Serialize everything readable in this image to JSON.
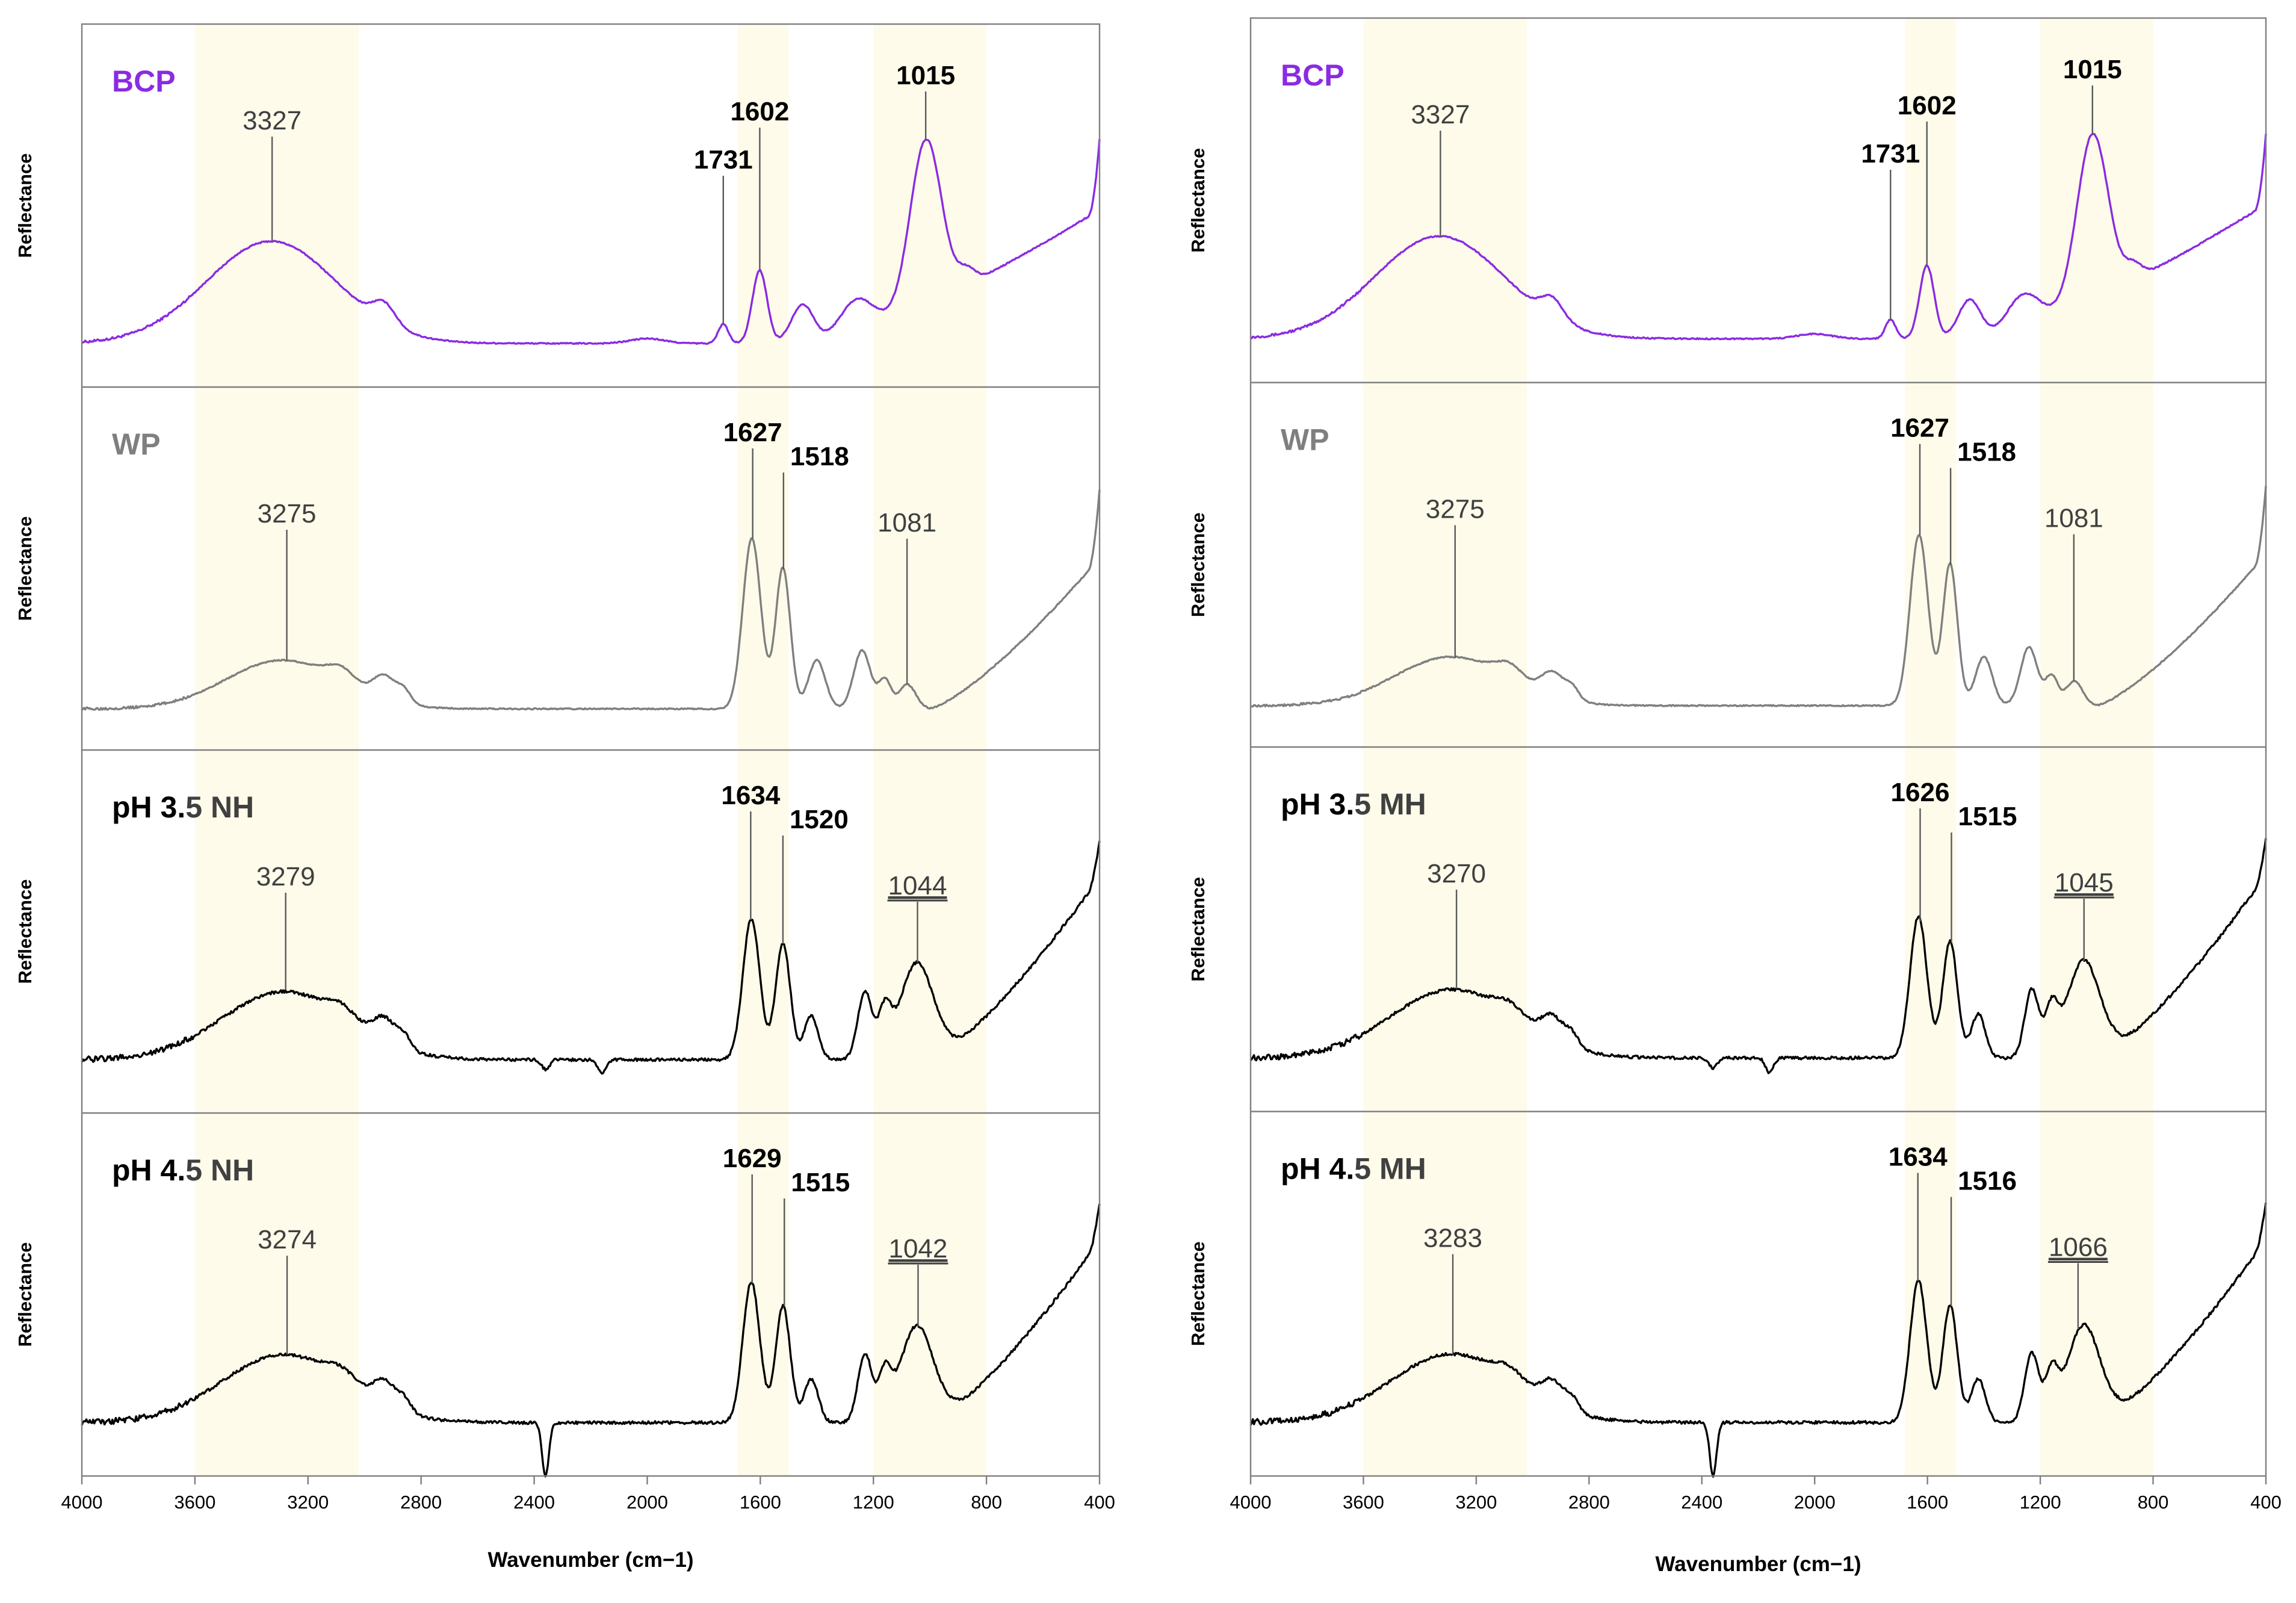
{
  "chart_data": [
    {
      "type": "line",
      "xlabel": "Wavenumber (cm−1)",
      "ylabel": "Reflectance",
      "xlim": [
        4000,
        400
      ],
      "xticks": [
        4000,
        3600,
        3200,
        2800,
        2400,
        2000,
        1600,
        1200,
        800,
        400
      ],
      "highlight_bands": [
        [
          3600,
          3020
        ],
        [
          1680,
          1500
        ],
        [
          1200,
          800
        ]
      ],
      "panels": [
        {
          "label": "BCP",
          "color": "#8a2be2",
          "peaks": [
            {
              "x": 3327,
              "text": "3327"
            },
            {
              "x": 1731,
              "text": "1731"
            },
            {
              "x": 1602,
              "text": "1602"
            },
            {
              "x": 1015,
              "text": "1015"
            }
          ]
        },
        {
          "label": "WP",
          "color": "#7f7f7f",
          "peaks": [
            {
              "x": 3275,
              "text": "3275"
            },
            {
              "x": 1627,
              "text": "1627"
            },
            {
              "x": 1518,
              "text": "1518"
            },
            {
              "x": 1081,
              "text": "1081"
            }
          ]
        },
        {
          "label_bold": "pH 3.",
          "label_rest": "5 NH",
          "color": "#000000",
          "peaks": [
            {
              "x": 3279,
              "text": "3279"
            },
            {
              "x": 1634,
              "text": "1634"
            },
            {
              "x": 1520,
              "text": "1520"
            },
            {
              "x": 1044,
              "text": "1044"
            }
          ]
        },
        {
          "label_bold": "pH 4.",
          "label_rest": "5 NH",
          "color": "#000000",
          "peaks": [
            {
              "x": 3274,
              "text": "3274"
            },
            {
              "x": 1629,
              "text": "1629"
            },
            {
              "x": 1515,
              "text": "1515"
            },
            {
              "x": 1042,
              "text": "1042"
            }
          ]
        }
      ]
    },
    {
      "type": "line",
      "xlabel": "Wavenumber (cm−1)",
      "ylabel": "Reflectance",
      "xlim": [
        4000,
        400
      ],
      "xticks": [
        4000,
        3600,
        3200,
        2800,
        2400,
        2000,
        1600,
        1200,
        800,
        400
      ],
      "highlight_bands": [
        [
          3600,
          3020
        ],
        [
          1680,
          1500
        ],
        [
          1200,
          800
        ]
      ],
      "panels": [
        {
          "label": "BCP",
          "color": "#8a2be2",
          "peaks": [
            {
              "x": 3327,
              "text": "3327"
            },
            {
              "x": 1731,
              "text": "1731"
            },
            {
              "x": 1602,
              "text": "1602"
            },
            {
              "x": 1015,
              "text": "1015"
            }
          ]
        },
        {
          "label": "WP",
          "color": "#7f7f7f",
          "peaks": [
            {
              "x": 3275,
              "text": "3275"
            },
            {
              "x": 1627,
              "text": "1627"
            },
            {
              "x": 1518,
              "text": "1518"
            },
            {
              "x": 1081,
              "text": "1081"
            }
          ]
        },
        {
          "label_bold": "pH 3.",
          "label_rest": "5 MH",
          "color": "#000000",
          "peaks": [
            {
              "x": 3270,
              "text": "3270"
            },
            {
              "x": 1626,
              "text": "1626"
            },
            {
              "x": 1515,
              "text": "1515"
            },
            {
              "x": 1045,
              "text": "1045"
            }
          ]
        },
        {
          "label_bold": "pH 4.",
          "label_rest": "5 MH",
          "color": "#000000",
          "peaks": [
            {
              "x": 3283,
              "text": "3283"
            },
            {
              "x": 1634,
              "text": "1634"
            },
            {
              "x": 1516,
              "text": "1516"
            },
            {
              "x": 1066,
              "text": "1066"
            }
          ]
        }
      ]
    }
  ]
}
